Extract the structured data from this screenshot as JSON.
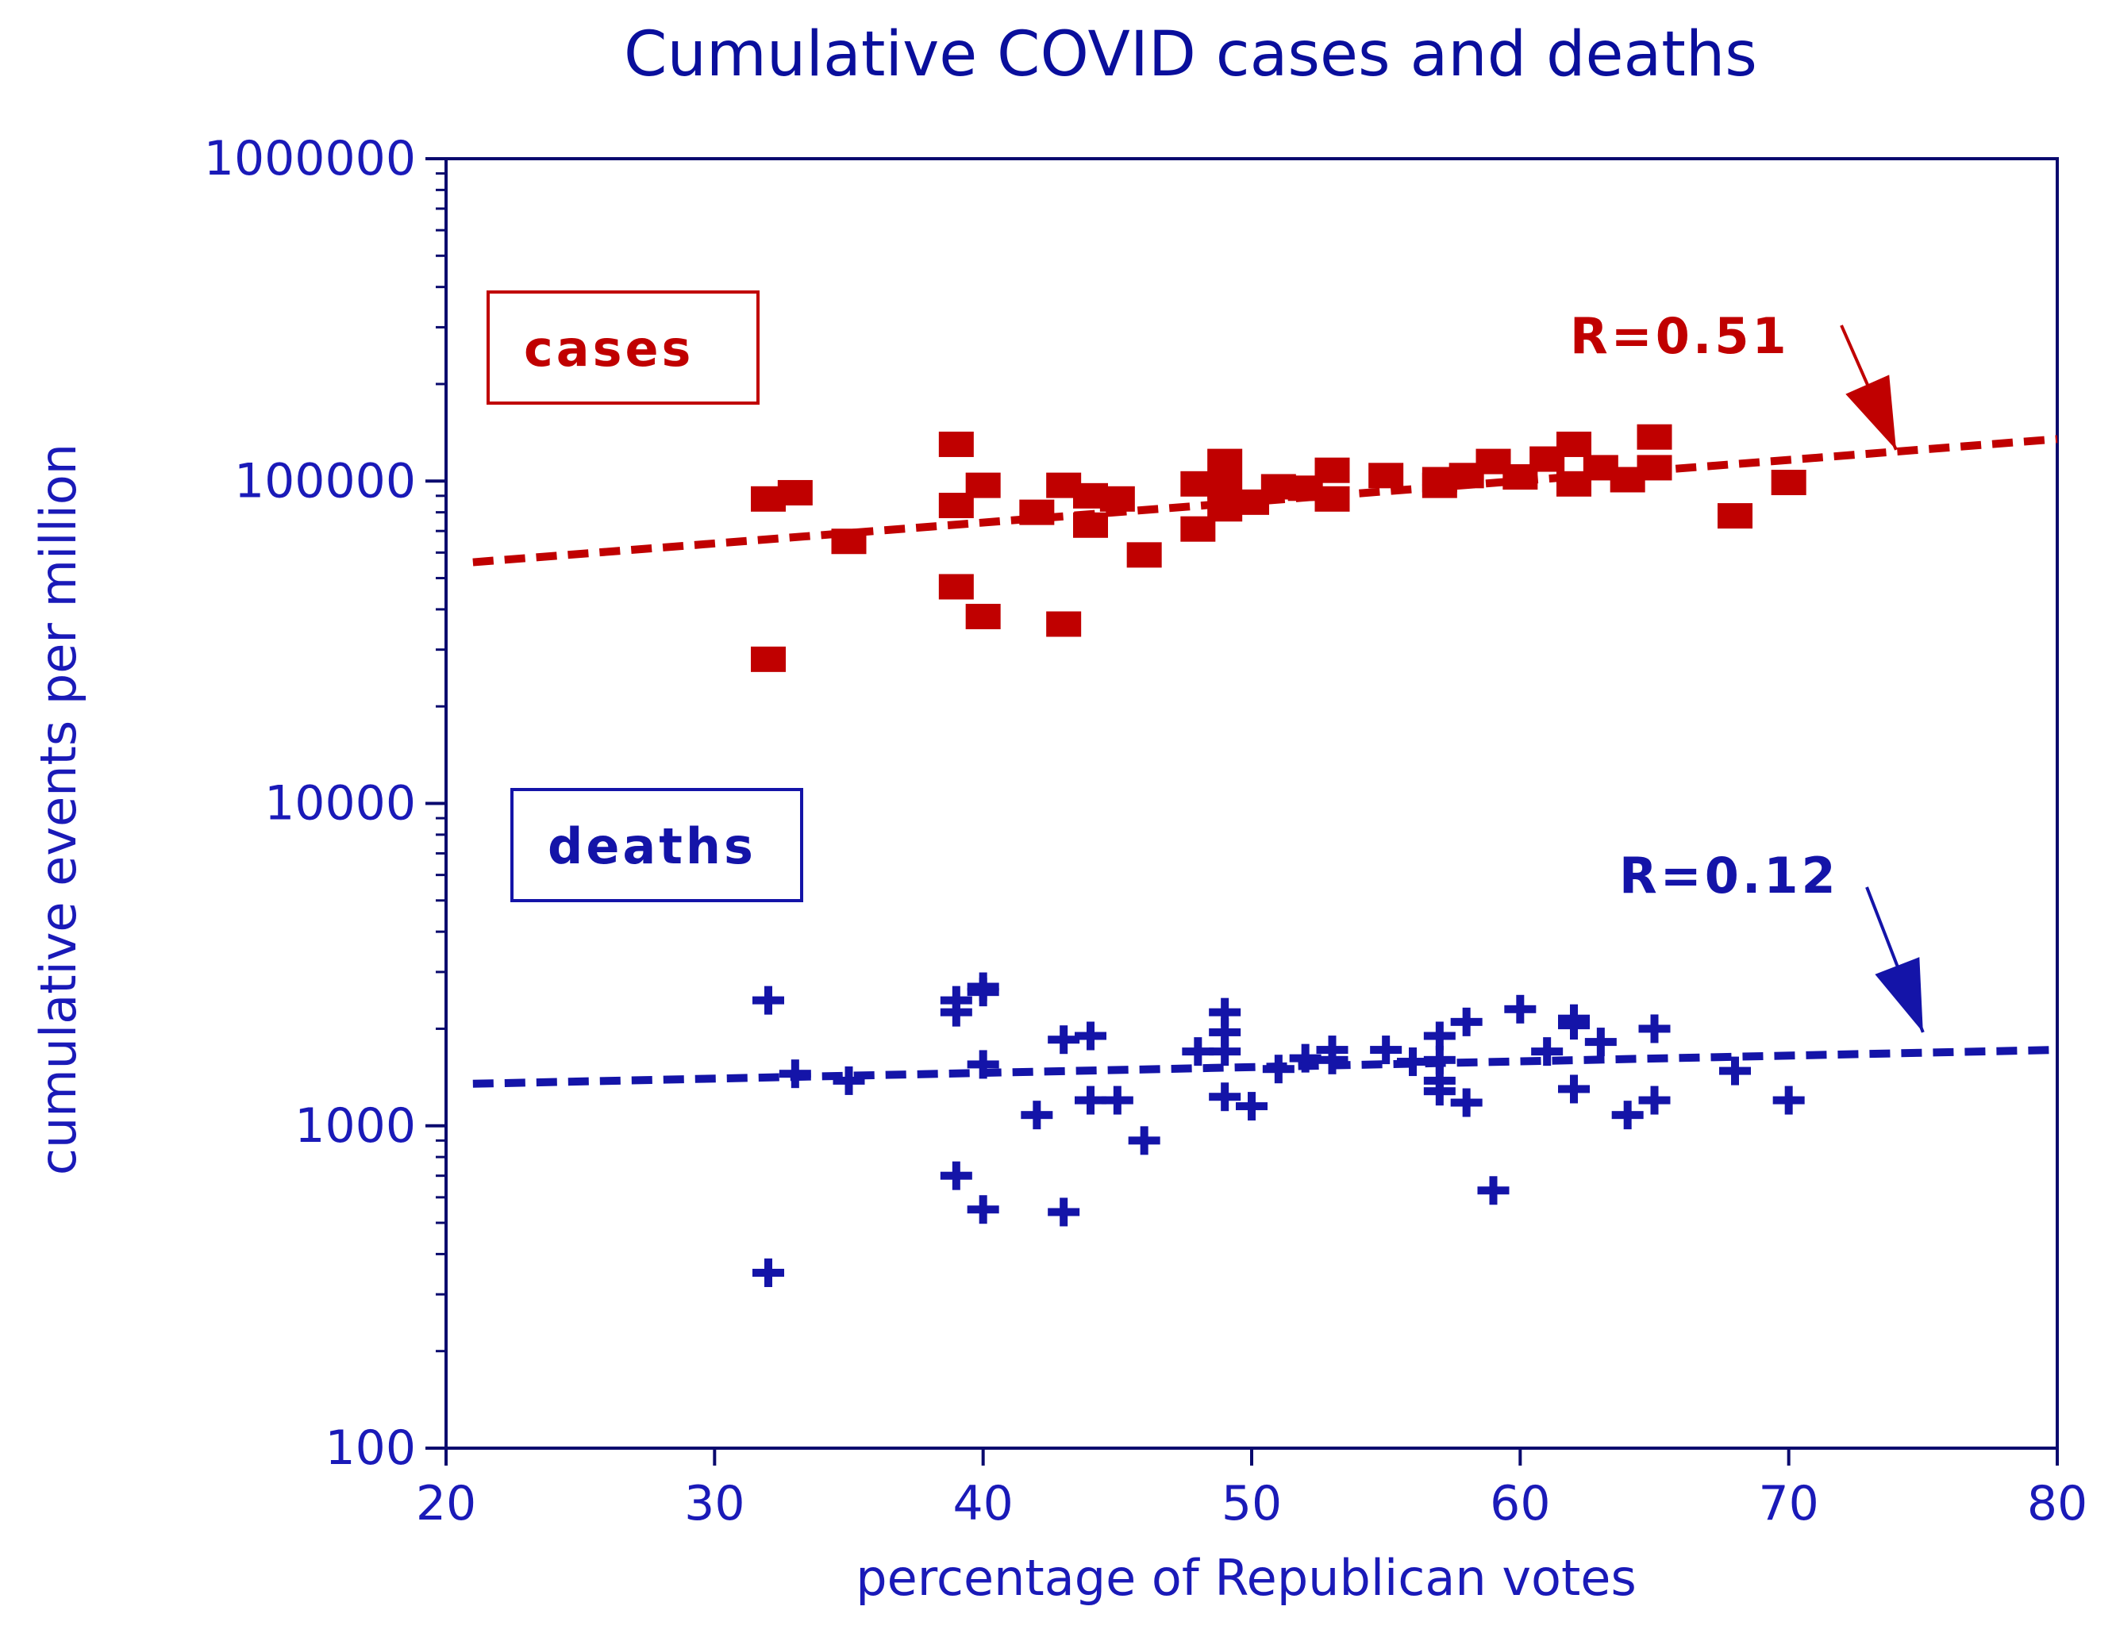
{
  "colors": {
    "cases": "#c00000",
    "deaths": "#1414a8",
    "axis": "#0a0a6e",
    "text": "#1a1ab8",
    "title": "#0a0f9c"
  },
  "chart_data": {
    "type": "scatter",
    "title": "Cumulative COVID cases and deaths",
    "xlabel": "percentage of Republican votes",
    "ylabel": "cumulative events per million",
    "xlim": [
      20,
      80
    ],
    "ylim": [
      100,
      1000000
    ],
    "yscale": "log",
    "xticks": [
      20,
      30,
      40,
      50,
      60,
      70,
      80
    ],
    "xtick_labels": [
      "20",
      "30",
      "40",
      "50",
      "60",
      "70",
      "80"
    ],
    "yticks": [
      100,
      1000,
      10000,
      100000,
      1000000
    ],
    "ytick_labels": [
      "100",
      "1000",
      "10000",
      "100000",
      "1000000"
    ],
    "series": [
      {
        "name": "cases",
        "marker": "square",
        "legend": "cases",
        "r_label": "R=0.51",
        "trend": [
          [
            21,
            56000
          ],
          [
            80,
            135000
          ]
        ],
        "arrow_to": [
          74,
          125000
        ],
        "points": [
          [
            32,
            88000
          ],
          [
            32,
            28000
          ],
          [
            33,
            92000
          ],
          [
            35,
            65000
          ],
          [
            39,
            130000
          ],
          [
            39,
            84000
          ],
          [
            39,
            47000
          ],
          [
            40,
            97000
          ],
          [
            40,
            38000
          ],
          [
            42,
            80000
          ],
          [
            43,
            97000
          ],
          [
            43,
            36000
          ],
          [
            44,
            73000
          ],
          [
            44,
            90000
          ],
          [
            45,
            88000
          ],
          [
            46,
            59000
          ],
          [
            48,
            98000
          ],
          [
            48,
            71000
          ],
          [
            49,
            115000
          ],
          [
            49,
            96000
          ],
          [
            49,
            82000
          ],
          [
            50,
            86000
          ],
          [
            51,
            96000
          ],
          [
            52,
            95000
          ],
          [
            53,
            108000
          ],
          [
            53,
            88000
          ],
          [
            55,
            104000
          ],
          [
            57,
            97000
          ],
          [
            57,
            101000
          ],
          [
            58,
            104000
          ],
          [
            59,
            115000
          ],
          [
            60,
            103000
          ],
          [
            61,
            117000
          ],
          [
            62,
            130000
          ],
          [
            62,
            98000
          ],
          [
            63,
            110000
          ],
          [
            64,
            101000
          ],
          [
            65,
            137000
          ],
          [
            65,
            110000
          ],
          [
            68,
            78000
          ],
          [
            70,
            99000
          ]
        ]
      },
      {
        "name": "deaths",
        "marker": "plus",
        "legend": "deaths",
        "r_label": "R=0.12",
        "trend": [
          [
            21,
            1350
          ],
          [
            80,
            1720
          ]
        ],
        "arrow_to": [
          75,
          1950
        ],
        "points": [
          [
            32,
            2450
          ],
          [
            32,
            350
          ],
          [
            33,
            1450
          ],
          [
            35,
            1380
          ],
          [
            39,
            2450
          ],
          [
            39,
            2250
          ],
          [
            39,
            700
          ],
          [
            40,
            2600
          ],
          [
            40,
            2700
          ],
          [
            40,
            1550
          ],
          [
            40,
            550
          ],
          [
            42,
            1080
          ],
          [
            43,
            1850
          ],
          [
            43,
            540
          ],
          [
            44,
            1900
          ],
          [
            44,
            1200
          ],
          [
            45,
            1200
          ],
          [
            46,
            900
          ],
          [
            48,
            1700
          ],
          [
            49,
            2250
          ],
          [
            49,
            1950
          ],
          [
            49,
            1700
          ],
          [
            49,
            1230
          ],
          [
            50,
            1150
          ],
          [
            51,
            1500
          ],
          [
            52,
            1620
          ],
          [
            53,
            1720
          ],
          [
            53,
            1600
          ],
          [
            55,
            1720
          ],
          [
            56,
            1580
          ],
          [
            57,
            1900
          ],
          [
            57,
            1600
          ],
          [
            57,
            1380
          ],
          [
            57,
            1280
          ],
          [
            58,
            2100
          ],
          [
            58,
            1180
          ],
          [
            59,
            630
          ],
          [
            60,
            2300
          ],
          [
            61,
            1700
          ],
          [
            62,
            2150
          ],
          [
            62,
            2050
          ],
          [
            62,
            1300
          ],
          [
            63,
            1820
          ],
          [
            64,
            1080
          ],
          [
            65,
            2000
          ],
          [
            65,
            1200
          ],
          [
            68,
            1480
          ],
          [
            70,
            1200
          ]
        ]
      }
    ]
  }
}
